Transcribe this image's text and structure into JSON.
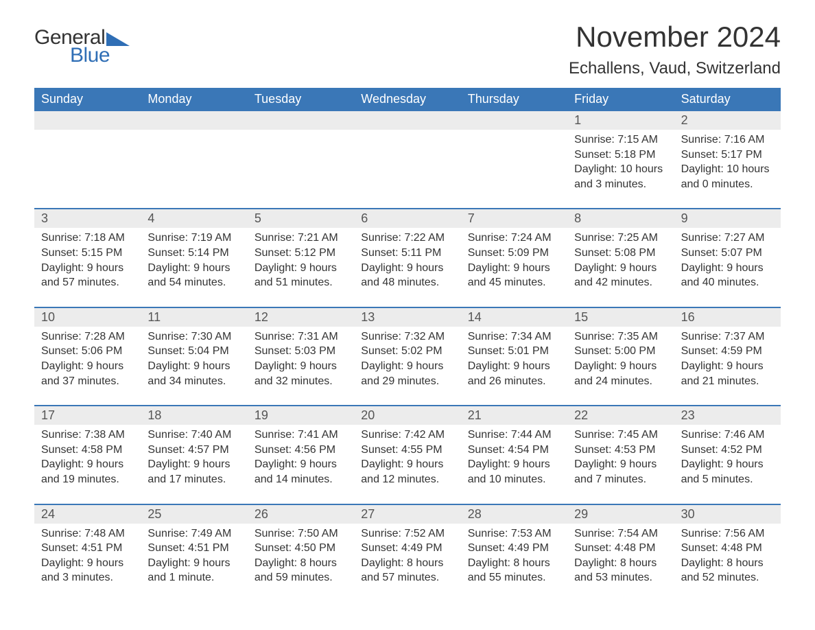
{
  "brand": {
    "general": "General",
    "blue": "Blue",
    "triangle_color": "#2f6eb5"
  },
  "title": "November 2024",
  "location": "Echallens, Vaud, Switzerland",
  "colors": {
    "header_bg": "#3a77b7",
    "header_text": "#ffffff",
    "row_band": "#ececec",
    "rule": "#3a77b7",
    "text": "#333333"
  },
  "type": "calendar-table",
  "columns": [
    "Sunday",
    "Monday",
    "Tuesday",
    "Wednesday",
    "Thursday",
    "Friday",
    "Saturday"
  ],
  "weeks": [
    [
      null,
      null,
      null,
      null,
      null,
      {
        "d": "1",
        "sr": "Sunrise: 7:15 AM",
        "ss": "Sunset: 5:18 PM",
        "dl1": "Daylight: 10 hours",
        "dl2": "and 3 minutes."
      },
      {
        "d": "2",
        "sr": "Sunrise: 7:16 AM",
        "ss": "Sunset: 5:17 PM",
        "dl1": "Daylight: 10 hours",
        "dl2": "and 0 minutes."
      }
    ],
    [
      {
        "d": "3",
        "sr": "Sunrise: 7:18 AM",
        "ss": "Sunset: 5:15 PM",
        "dl1": "Daylight: 9 hours",
        "dl2": "and 57 minutes."
      },
      {
        "d": "4",
        "sr": "Sunrise: 7:19 AM",
        "ss": "Sunset: 5:14 PM",
        "dl1": "Daylight: 9 hours",
        "dl2": "and 54 minutes."
      },
      {
        "d": "5",
        "sr": "Sunrise: 7:21 AM",
        "ss": "Sunset: 5:12 PM",
        "dl1": "Daylight: 9 hours",
        "dl2": "and 51 minutes."
      },
      {
        "d": "6",
        "sr": "Sunrise: 7:22 AM",
        "ss": "Sunset: 5:11 PM",
        "dl1": "Daylight: 9 hours",
        "dl2": "and 48 minutes."
      },
      {
        "d": "7",
        "sr": "Sunrise: 7:24 AM",
        "ss": "Sunset: 5:09 PM",
        "dl1": "Daylight: 9 hours",
        "dl2": "and 45 minutes."
      },
      {
        "d": "8",
        "sr": "Sunrise: 7:25 AM",
        "ss": "Sunset: 5:08 PM",
        "dl1": "Daylight: 9 hours",
        "dl2": "and 42 minutes."
      },
      {
        "d": "9",
        "sr": "Sunrise: 7:27 AM",
        "ss": "Sunset: 5:07 PM",
        "dl1": "Daylight: 9 hours",
        "dl2": "and 40 minutes."
      }
    ],
    [
      {
        "d": "10",
        "sr": "Sunrise: 7:28 AM",
        "ss": "Sunset: 5:06 PM",
        "dl1": "Daylight: 9 hours",
        "dl2": "and 37 minutes."
      },
      {
        "d": "11",
        "sr": "Sunrise: 7:30 AM",
        "ss": "Sunset: 5:04 PM",
        "dl1": "Daylight: 9 hours",
        "dl2": "and 34 minutes."
      },
      {
        "d": "12",
        "sr": "Sunrise: 7:31 AM",
        "ss": "Sunset: 5:03 PM",
        "dl1": "Daylight: 9 hours",
        "dl2": "and 32 minutes."
      },
      {
        "d": "13",
        "sr": "Sunrise: 7:32 AM",
        "ss": "Sunset: 5:02 PM",
        "dl1": "Daylight: 9 hours",
        "dl2": "and 29 minutes."
      },
      {
        "d": "14",
        "sr": "Sunrise: 7:34 AM",
        "ss": "Sunset: 5:01 PM",
        "dl1": "Daylight: 9 hours",
        "dl2": "and 26 minutes."
      },
      {
        "d": "15",
        "sr": "Sunrise: 7:35 AM",
        "ss": "Sunset: 5:00 PM",
        "dl1": "Daylight: 9 hours",
        "dl2": "and 24 minutes."
      },
      {
        "d": "16",
        "sr": "Sunrise: 7:37 AM",
        "ss": "Sunset: 4:59 PM",
        "dl1": "Daylight: 9 hours",
        "dl2": "and 21 minutes."
      }
    ],
    [
      {
        "d": "17",
        "sr": "Sunrise: 7:38 AM",
        "ss": "Sunset: 4:58 PM",
        "dl1": "Daylight: 9 hours",
        "dl2": "and 19 minutes."
      },
      {
        "d": "18",
        "sr": "Sunrise: 7:40 AM",
        "ss": "Sunset: 4:57 PM",
        "dl1": "Daylight: 9 hours",
        "dl2": "and 17 minutes."
      },
      {
        "d": "19",
        "sr": "Sunrise: 7:41 AM",
        "ss": "Sunset: 4:56 PM",
        "dl1": "Daylight: 9 hours",
        "dl2": "and 14 minutes."
      },
      {
        "d": "20",
        "sr": "Sunrise: 7:42 AM",
        "ss": "Sunset: 4:55 PM",
        "dl1": "Daylight: 9 hours",
        "dl2": "and 12 minutes."
      },
      {
        "d": "21",
        "sr": "Sunrise: 7:44 AM",
        "ss": "Sunset: 4:54 PM",
        "dl1": "Daylight: 9 hours",
        "dl2": "and 10 minutes."
      },
      {
        "d": "22",
        "sr": "Sunrise: 7:45 AM",
        "ss": "Sunset: 4:53 PM",
        "dl1": "Daylight: 9 hours",
        "dl2": "and 7 minutes."
      },
      {
        "d": "23",
        "sr": "Sunrise: 7:46 AM",
        "ss": "Sunset: 4:52 PM",
        "dl1": "Daylight: 9 hours",
        "dl2": "and 5 minutes."
      }
    ],
    [
      {
        "d": "24",
        "sr": "Sunrise: 7:48 AM",
        "ss": "Sunset: 4:51 PM",
        "dl1": "Daylight: 9 hours",
        "dl2": "and 3 minutes."
      },
      {
        "d": "25",
        "sr": "Sunrise: 7:49 AM",
        "ss": "Sunset: 4:51 PM",
        "dl1": "Daylight: 9 hours",
        "dl2": "and 1 minute."
      },
      {
        "d": "26",
        "sr": "Sunrise: 7:50 AM",
        "ss": "Sunset: 4:50 PM",
        "dl1": "Daylight: 8 hours",
        "dl2": "and 59 minutes."
      },
      {
        "d": "27",
        "sr": "Sunrise: 7:52 AM",
        "ss": "Sunset: 4:49 PM",
        "dl1": "Daylight: 8 hours",
        "dl2": "and 57 minutes."
      },
      {
        "d": "28",
        "sr": "Sunrise: 7:53 AM",
        "ss": "Sunset: 4:49 PM",
        "dl1": "Daylight: 8 hours",
        "dl2": "and 55 minutes."
      },
      {
        "d": "29",
        "sr": "Sunrise: 7:54 AM",
        "ss": "Sunset: 4:48 PM",
        "dl1": "Daylight: 8 hours",
        "dl2": "and 53 minutes."
      },
      {
        "d": "30",
        "sr": "Sunrise: 7:56 AM",
        "ss": "Sunset: 4:48 PM",
        "dl1": "Daylight: 8 hours",
        "dl2": "and 52 minutes."
      }
    ]
  ]
}
